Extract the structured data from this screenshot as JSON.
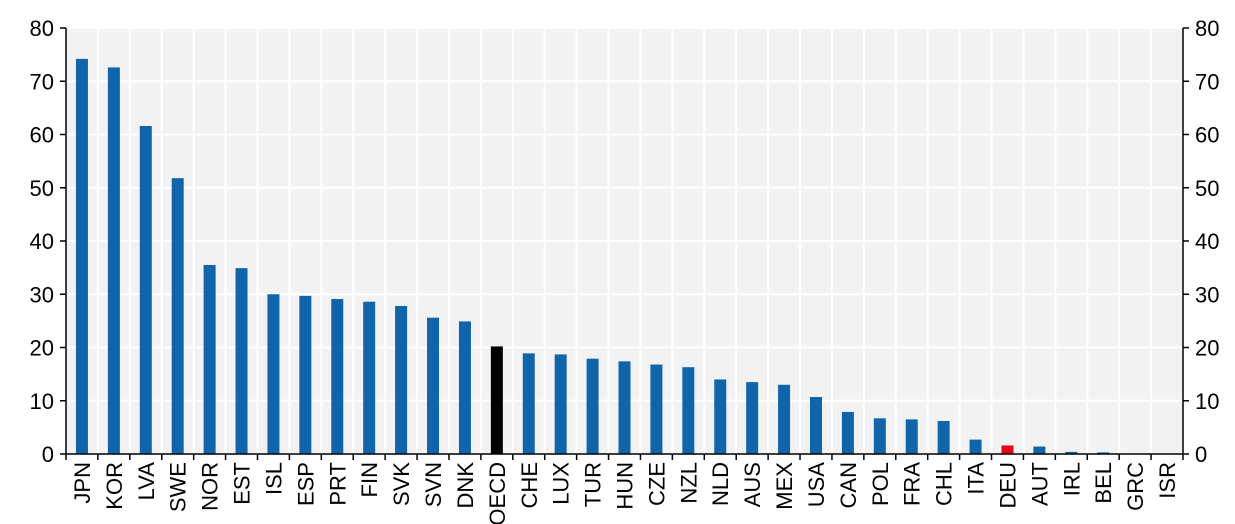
{
  "chart_data": {
    "type": "bar",
    "title": "",
    "xlabel": "",
    "ylabel": "",
    "ylim": [
      0,
      80
    ],
    "yticks": [
      0,
      10,
      20,
      30,
      40,
      50,
      60,
      70,
      80
    ],
    "grid": true,
    "legend": "none",
    "categories": [
      "JPN",
      "KOR",
      "LVA",
      "SWE",
      "NOR",
      "EST",
      "ISL",
      "ESP",
      "PRT",
      "FIN",
      "SVK",
      "SVN",
      "DNK",
      "OECD",
      "CHE",
      "LUX",
      "TUR",
      "HUN",
      "CZE",
      "NZL",
      "NLD",
      "AUS",
      "MEX",
      "USA",
      "CAN",
      "POL",
      "FRA",
      "CHL",
      "ITA",
      "DEU",
      "AUT",
      "IRL",
      "BEL",
      "GRC",
      "ISR"
    ],
    "values": [
      74.2,
      72.6,
      61.6,
      51.8,
      35.5,
      34.9,
      30.0,
      29.7,
      29.1,
      28.6,
      27.8,
      25.6,
      24.9,
      20.2,
      18.9,
      18.7,
      17.9,
      17.4,
      16.8,
      16.3,
      14.0,
      13.5,
      13.0,
      10.7,
      7.9,
      6.7,
      6.5,
      6.2,
      2.7,
      1.6,
      1.4,
      0.4,
      0.3,
      0.0,
      0.0
    ],
    "colors": {
      "default": "#0f64aa",
      "OECD": "#000000",
      "DEU": "#e8001c",
      "plot_background": "#f2f2f2",
      "gridline": "#ffffff"
    }
  }
}
